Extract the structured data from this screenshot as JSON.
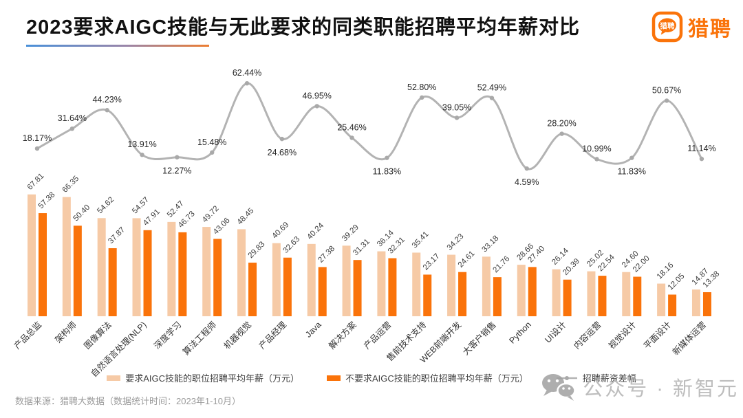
{
  "header": {
    "title": "2023要求AIGC技能与无此要求的同类职能招聘平均年薪对比",
    "brand": "猎聘",
    "brand_icon_text": "猎聘"
  },
  "chart_data": {
    "type": "bar",
    "title": "2023要求AIGC技能与无此要求的同类职能招聘平均年薪对比",
    "categories": [
      "产品总监",
      "架构师",
      "图像算法",
      "自然语言处理(NLP)",
      "深度学习",
      "算法工程师",
      "机器视觉",
      "产品经理",
      "Java",
      "解决方案",
      "产品运营",
      "售前技术支持",
      "WEB前端开发",
      "大客户销售",
      "Python",
      "UI设计",
      "内容运营",
      "视觉设计",
      "平面设计",
      "新媒体运营"
    ],
    "series": [
      {
        "name": "要求AIGC技能的职位招聘平均年薪（万元）",
        "type": "bar",
        "color": "#f6caa6",
        "values": [
          67.81,
          66.35,
          54.62,
          54.57,
          52.47,
          49.72,
          48.45,
          40.69,
          40.24,
          39.29,
          36.14,
          35.41,
          34.23,
          33.18,
          28.66,
          26.14,
          25.02,
          24.6,
          18.16,
          14.87
        ]
      },
      {
        "name": "不要求AIGC技能的职位招聘平均年薪（万元）",
        "type": "bar",
        "color": "#fa730a",
        "values": [
          57.38,
          50.4,
          37.87,
          47.91,
          46.73,
          43.06,
          29.83,
          32.63,
          27.38,
          31.31,
          32.31,
          23.17,
          24.61,
          21.76,
          27.4,
          20.39,
          22.54,
          22.0,
          12.05,
          13.38
        ]
      },
      {
        "name": "招聘薪资差幅",
        "type": "line",
        "color": "#b3b3b3",
        "unit": "%",
        "values": [
          18.17,
          31.64,
          44.23,
          13.91,
          12.27,
          15.48,
          62.44,
          24.68,
          46.95,
          25.46,
          11.83,
          52.8,
          39.05,
          52.49,
          4.59,
          28.2,
          10.99,
          11.83,
          50.67,
          11.14
        ]
      }
    ],
    "label_below_indices": [
      4,
      7,
      10,
      14,
      17
    ],
    "bar_ylim": [
      0,
      75
    ],
    "line_ylim": [
      0,
      70
    ],
    "grid": false,
    "legend_position": "bottom"
  },
  "footer": {
    "source": "数据来源：猎聘大数据（数据统计时间：2023年1-10月）",
    "watermark": "公众号 · 新智元"
  }
}
